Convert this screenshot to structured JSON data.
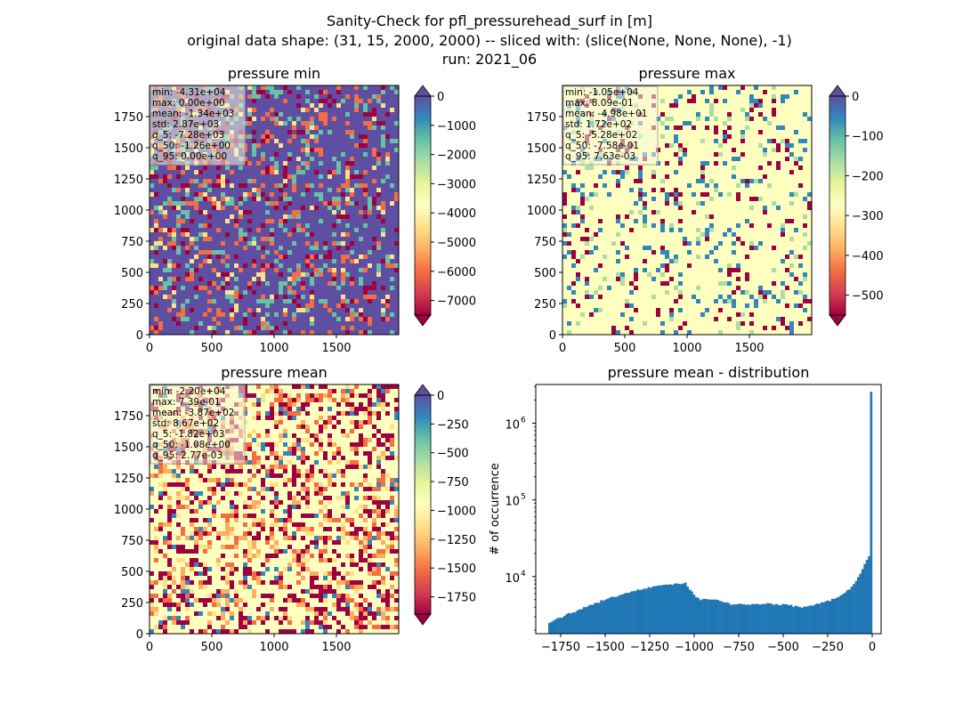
{
  "figure": {
    "title_lines": [
      "Sanity-Check for pfl_pressurehead_surf in [m]",
      "original data shape: (31, 15, 2000, 2000) -- sliced with: (slice(None, None, None), -1)",
      "run: 2021_06"
    ]
  },
  "colors": {
    "spectral": [
      "#9e0142",
      "#d53e4f",
      "#f46d43",
      "#fdae61",
      "#fee08b",
      "#ffffbf",
      "#e6f598",
      "#abdda4",
      "#66c2a5",
      "#3288bd",
      "#5e4fa2"
    ],
    "hist_bar": "#1f77b4",
    "stats_box_bg": "#f5f5dc"
  },
  "chart_data": [
    {
      "type": "heatmap",
      "title": "pressure min",
      "xlim": [
        0,
        2000
      ],
      "ylim": [
        0,
        2000
      ],
      "xticks": [
        0,
        500,
        1000,
        1500
      ],
      "yticks": [
        0,
        250,
        500,
        750,
        1000,
        1250,
        1500,
        1750
      ],
      "colorbar": {
        "vmin": -7500,
        "vmax": 0,
        "ticks": [
          0,
          -1000,
          -2000,
          -3000,
          -4000,
          -5000,
          -6000,
          -7000
        ],
        "extend": "both"
      },
      "stats": [
        "min: -4.31e+04",
        "max: 0.00e+00",
        "mean: -1.34e+03",
        "std: 2.87e+03",
        "q_5: -7.28e+03",
        "q_50: -1.26e+00",
        "q_95: 0.00e+00"
      ]
    },
    {
      "type": "heatmap",
      "title": "pressure max",
      "xlim": [
        0,
        2000
      ],
      "ylim": [
        0,
        2000
      ],
      "xticks": [
        0,
        500,
        1000,
        1500
      ],
      "yticks": [
        0,
        250,
        500,
        750,
        1000,
        1250,
        1500,
        1750
      ],
      "colorbar": {
        "vmin": -550,
        "vmax": 0,
        "ticks": [
          0,
          -100,
          -200,
          -300,
          -400,
          -500
        ],
        "extend": "both"
      },
      "stats": [
        "min: -1.05e+04",
        "max: 8.09e-01",
        "mean: -4.98e+01",
        "std: 1.72e+02",
        "q_5: -5.28e+02",
        "q_50: -7.58e-01",
        "q_95: 7.63e-03"
      ]
    },
    {
      "type": "heatmap",
      "title": "pressure mean",
      "xlim": [
        0,
        2000
      ],
      "ylim": [
        0,
        2000
      ],
      "xticks": [
        0,
        500,
        1000,
        1500
      ],
      "yticks": [
        0,
        250,
        500,
        750,
        1000,
        1250,
        1500,
        1750
      ],
      "colorbar": {
        "vmin": -1900,
        "vmax": 0,
        "ticks": [
          0,
          -250,
          -500,
          -750,
          -1000,
          -1250,
          -1500,
          -1750
        ],
        "extend": "both"
      },
      "stats": [
        "min: -2.20e+04",
        "max: 7.39e-01",
        "mean: -3.87e+02",
        "std: 8.67e+02",
        "q_5: -1.82e+03",
        "q_50: -1.08e+00",
        "q_95: 2.77e-03"
      ]
    },
    {
      "type": "bar",
      "title": "pressure mean - distribution",
      "ylabel": "# of occurrence",
      "yscale": "log",
      "xlim": [
        -1890,
        50
      ],
      "xticks": [
        -1750,
        -1500,
        -1250,
        -1000,
        -750,
        -500,
        -250,
        0
      ],
      "ylim": [
        1800,
        3200000
      ],
      "yticks": [
        10000,
        100000,
        1000000
      ],
      "ytick_labels": [
        "10",
        "10",
        "10"
      ],
      "ytick_exponents": [
        "4",
        "5",
        "6"
      ],
      "bin_range": [
        -1820,
        0
      ],
      "bins": 150,
      "anchors": [
        [
          -1820,
          2500
        ],
        [
          -1700,
          3300
        ],
        [
          -1600,
          4100
        ],
        [
          -1500,
          5000
        ],
        [
          -1400,
          5900
        ],
        [
          -1300,
          6800
        ],
        [
          -1200,
          7700
        ],
        [
          -1100,
          8000
        ],
        [
          -1050,
          8200
        ],
        [
          -1000,
          5700
        ],
        [
          -960,
          5000
        ],
        [
          -900,
          5100
        ],
        [
          -850,
          4700
        ],
        [
          -800,
          4400
        ],
        [
          -700,
          4300
        ],
        [
          -600,
          4500
        ],
        [
          -500,
          4300
        ],
        [
          -400,
          4000
        ],
        [
          -300,
          4400
        ],
        [
          -200,
          5200
        ],
        [
          -150,
          6200
        ],
        [
          -100,
          8000
        ],
        [
          -60,
          12000
        ],
        [
          -30,
          17000
        ],
        [
          -12,
          19000
        ],
        [
          -6,
          10000
        ],
        [
          0,
          2500000
        ]
      ]
    }
  ]
}
